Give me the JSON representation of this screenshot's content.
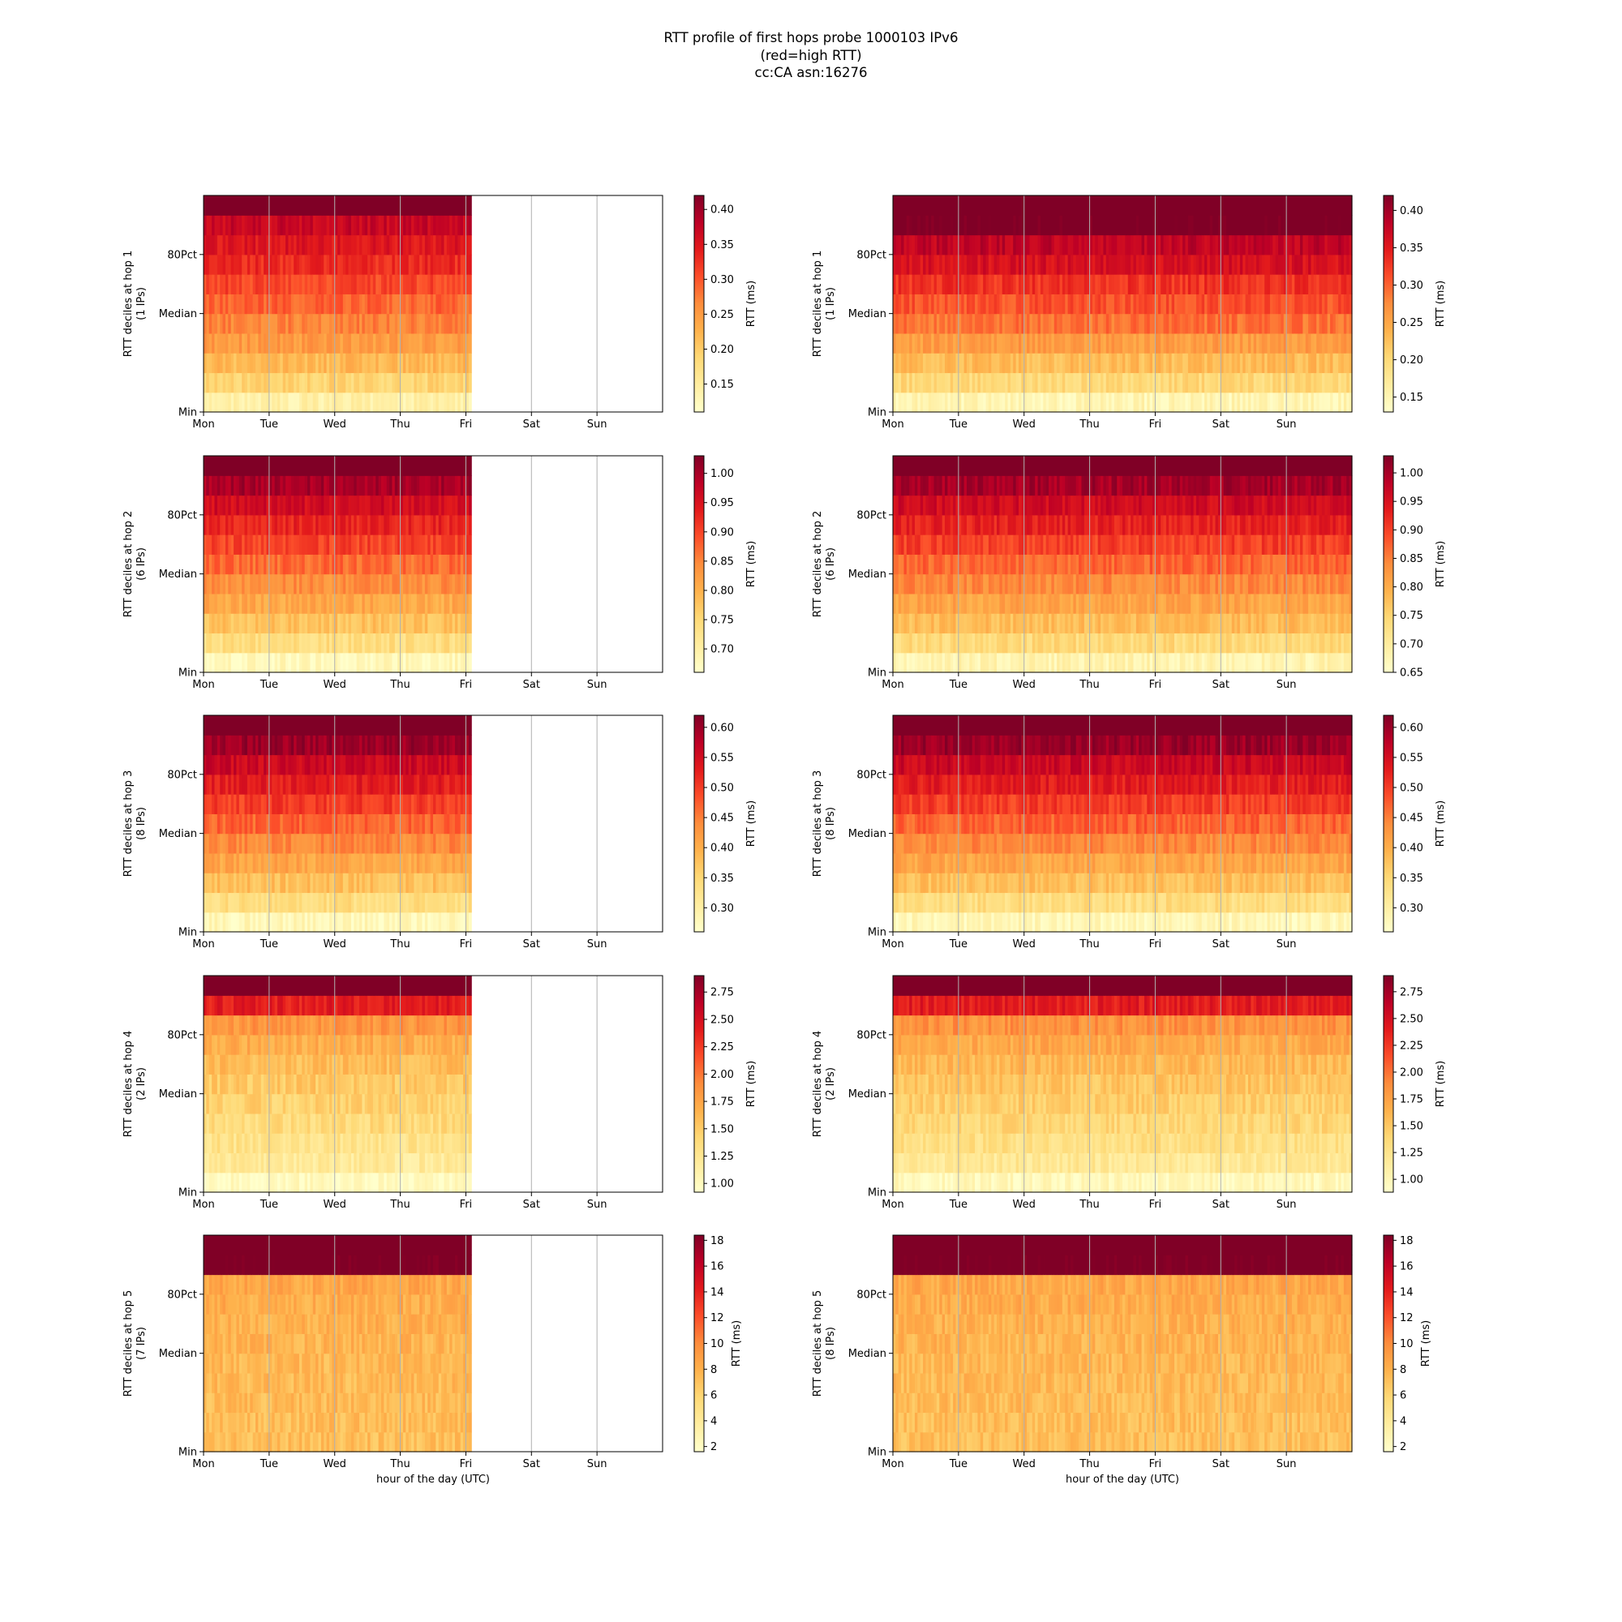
{
  "title": {
    "line1": "RTT profile of first hops probe 1000103 IPv6",
    "line2": "(red=high RTT)",
    "line3": "cc:CA asn:16276"
  },
  "chart_data": [
    {
      "type": "heatmap",
      "panel": "left",
      "hop": 1,
      "ylabel": "RTT deciles at hop 1",
      "ylabel2": "(1 IPs)",
      "yticks": [
        "80Pct",
        "Median",
        "Min"
      ],
      "x_ticks": [
        "Mon",
        "Tue",
        "Wed",
        "Thu",
        "Fri",
        "Sat",
        "Sun"
      ],
      "data_end_day": 4.07,
      "colorbar_label": "RTT (ms)",
      "colorbar_ticks": [
        0.15,
        0.2,
        0.25,
        0.3,
        0.35,
        0.4
      ],
      "colorbar_range": [
        0.11,
        0.42
      ],
      "decile_values": [
        0.14,
        0.19,
        0.22,
        0.25,
        0.27,
        0.29,
        0.31,
        0.33,
        0.35,
        0.37,
        0.45
      ],
      "xlabel": ""
    },
    {
      "type": "heatmap",
      "panel": "right",
      "hop": 1,
      "ylabel": "RTT deciles at hop 1",
      "ylabel2": "(1 IPs)",
      "yticks": [
        "80Pct",
        "Median",
        "Min"
      ],
      "x_ticks": [
        "Mon",
        "Tue",
        "Wed",
        "Thu",
        "Fri",
        "Sat",
        "Sun"
      ],
      "data_end_day": 7,
      "colorbar_label": "RTT (ms)",
      "colorbar_ticks": [
        0.15,
        0.2,
        0.25,
        0.3,
        0.35,
        0.4
      ],
      "colorbar_range": [
        0.13,
        0.42
      ],
      "decile_values": [
        0.15,
        0.2,
        0.23,
        0.26,
        0.29,
        0.31,
        0.33,
        0.36,
        0.38,
        0.43,
        0.45
      ],
      "xlabel": ""
    },
    {
      "type": "heatmap",
      "panel": "left",
      "hop": 2,
      "ylabel": "RTT deciles at hop 2",
      "ylabel2": "(6 IPs)",
      "yticks": [
        "80Pct",
        "Median",
        "Min"
      ],
      "x_ticks": [
        "Mon",
        "Tue",
        "Wed",
        "Thu",
        "Fri",
        "Sat",
        "Sun"
      ],
      "data_end_day": 4.07,
      "colorbar_label": "RTT (ms)",
      "colorbar_ticks": [
        0.7,
        0.75,
        0.8,
        0.85,
        0.9,
        0.95,
        1.0
      ],
      "colorbar_range": [
        0.66,
        1.03
      ],
      "decile_values": [
        0.68,
        0.74,
        0.78,
        0.81,
        0.84,
        0.87,
        0.9,
        0.93,
        0.96,
        1.0,
        1.1
      ],
      "xlabel": ""
    },
    {
      "type": "heatmap",
      "panel": "right",
      "hop": 2,
      "ylabel": "RTT deciles at hop 2",
      "ylabel2": "(6 IPs)",
      "yticks": [
        "80Pct",
        "Median",
        "Min"
      ],
      "x_ticks": [
        "Mon",
        "Tue",
        "Wed",
        "Thu",
        "Fri",
        "Sat",
        "Sun"
      ],
      "data_end_day": 7,
      "colorbar_label": "RTT (ms)",
      "colorbar_ticks": [
        0.65,
        0.7,
        0.75,
        0.8,
        0.85,
        0.9,
        0.95,
        1.0
      ],
      "colorbar_range": [
        0.65,
        1.03
      ],
      "decile_values": [
        0.68,
        0.74,
        0.78,
        0.81,
        0.84,
        0.87,
        0.9,
        0.93,
        0.96,
        1.0,
        1.1
      ],
      "xlabel": ""
    },
    {
      "type": "heatmap",
      "panel": "left",
      "hop": 3,
      "ylabel": "RTT deciles at hop 3",
      "ylabel2": "(8 IPs)",
      "yticks": [
        "80Pct",
        "Median",
        "Min"
      ],
      "x_ticks": [
        "Mon",
        "Tue",
        "Wed",
        "Thu",
        "Fri",
        "Sat",
        "Sun"
      ],
      "data_end_day": 4.07,
      "colorbar_label": "RTT (ms)",
      "colorbar_ticks": [
        0.3,
        0.35,
        0.4,
        0.45,
        0.5,
        0.55,
        0.6
      ],
      "colorbar_range": [
        0.26,
        0.62
      ],
      "decile_values": [
        0.28,
        0.34,
        0.38,
        0.41,
        0.44,
        0.47,
        0.5,
        0.53,
        0.56,
        0.6,
        0.7
      ],
      "xlabel": ""
    },
    {
      "type": "heatmap",
      "panel": "right",
      "hop": 3,
      "ylabel": "RTT deciles at hop 3",
      "ylabel2": "(8 IPs)",
      "yticks": [
        "80Pct",
        "Median",
        "Min"
      ],
      "x_ticks": [
        "Mon",
        "Tue",
        "Wed",
        "Thu",
        "Fri",
        "Sat",
        "Sun"
      ],
      "data_end_day": 7,
      "colorbar_label": "RTT (ms)",
      "colorbar_ticks": [
        0.3,
        0.35,
        0.4,
        0.45,
        0.5,
        0.55,
        0.6
      ],
      "colorbar_range": [
        0.26,
        0.62
      ],
      "decile_values": [
        0.28,
        0.34,
        0.38,
        0.41,
        0.44,
        0.47,
        0.5,
        0.53,
        0.56,
        0.6,
        0.7
      ],
      "xlabel": ""
    },
    {
      "type": "heatmap",
      "panel": "left",
      "hop": 4,
      "ylabel": "RTT deciles at hop 4",
      "ylabel2": "(2 IPs)",
      "yticks": [
        "80Pct",
        "Median",
        "Min"
      ],
      "x_ticks": [
        "Mon",
        "Tue",
        "Wed",
        "Thu",
        "Fri",
        "Sat",
        "Sun"
      ],
      "data_end_day": 4.07,
      "colorbar_label": "RTT (ms)",
      "colorbar_ticks": [
        1.0,
        1.25,
        1.5,
        1.75,
        2.0,
        2.25,
        2.5,
        2.75
      ],
      "colorbar_range": [
        0.92,
        2.9
      ],
      "decile_values": [
        0.98,
        1.2,
        1.3,
        1.38,
        1.45,
        1.52,
        1.6,
        1.7,
        1.85,
        2.4,
        3.1
      ],
      "xlabel": ""
    },
    {
      "type": "heatmap",
      "panel": "right",
      "hop": 4,
      "ylabel": "RTT deciles at hop 4",
      "ylabel2": "(2 IPs)",
      "yticks": [
        "80Pct",
        "Median",
        "Min"
      ],
      "x_ticks": [
        "Mon",
        "Tue",
        "Wed",
        "Thu",
        "Fri",
        "Sat",
        "Sun"
      ],
      "data_end_day": 7,
      "colorbar_label": "RTT (ms)",
      "colorbar_ticks": [
        1.0,
        1.25,
        1.5,
        1.75,
        2.0,
        2.25,
        2.5,
        2.75
      ],
      "colorbar_range": [
        0.88,
        2.9
      ],
      "decile_values": [
        0.98,
        1.2,
        1.3,
        1.38,
        1.45,
        1.52,
        1.6,
        1.7,
        1.85,
        2.4,
        3.1
      ],
      "xlabel": ""
    },
    {
      "type": "heatmap",
      "panel": "left",
      "hop": 5,
      "ylabel": "RTT deciles at hop 5",
      "ylabel2": "(7 IPs)",
      "yticks": [
        "80Pct",
        "Median",
        "Min"
      ],
      "x_ticks": [
        "Mon",
        "Tue",
        "Wed",
        "Thu",
        "Fri",
        "Sat",
        "Sun"
      ],
      "data_end_day": 4.07,
      "colorbar_label": "RTT (ms)",
      "colorbar_ticks": [
        2,
        4,
        6,
        8,
        10,
        12,
        14,
        16,
        18
      ],
      "colorbar_range": [
        1.6,
        18.4
      ],
      "decile_values": [
        7.2,
        7.3,
        7.4,
        7.5,
        7.6,
        7.8,
        8.0,
        8.2,
        8.5,
        19.0,
        20.0
      ],
      "xlabel": "hour of the day (UTC)"
    },
    {
      "type": "heatmap",
      "panel": "right",
      "hop": 5,
      "ylabel": "RTT deciles at hop 5",
      "ylabel2": "(8 IPs)",
      "yticks": [
        "80Pct",
        "Median",
        "Min"
      ],
      "x_ticks": [
        "Mon",
        "Tue",
        "Wed",
        "Thu",
        "Fri",
        "Sat",
        "Sun"
      ],
      "data_end_day": 7,
      "colorbar_label": "RTT (ms)",
      "colorbar_ticks": [
        2,
        4,
        6,
        8,
        10,
        12,
        14,
        16,
        18
      ],
      "colorbar_range": [
        1.6,
        18.4
      ],
      "decile_values": [
        7.2,
        7.3,
        7.4,
        7.5,
        7.6,
        7.8,
        8.0,
        8.2,
        8.5,
        19.0,
        20.0
      ],
      "xlabel": "hour of the day (UTC)"
    }
  ]
}
